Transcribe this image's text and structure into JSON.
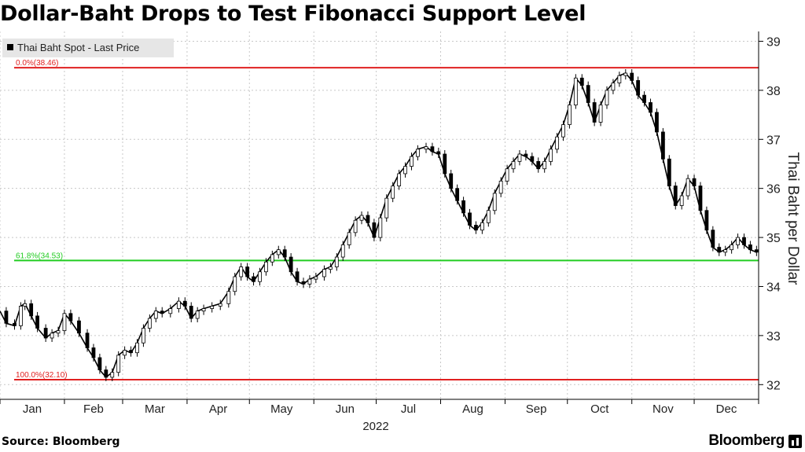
{
  "title": "Dollar-Baht Drops to Test Fibonacci Support Level",
  "source": "Source: Bloomberg",
  "brand": "Bloomberg",
  "chart_data": {
    "type": "line",
    "legend": "Thai Baht Spot - Last Price",
    "legend_position": "top-left",
    "ylabel": "Thai Baht per Dollar",
    "xlabel": "2022",
    "ylim": [
      31.7,
      39.2
    ],
    "yticks": [
      32,
      33,
      34,
      35,
      36,
      37,
      38,
      39
    ],
    "xlim": [
      0,
      365
    ],
    "months": [
      "Jan",
      "Feb",
      "Mar",
      "Apr",
      "May",
      "Jun",
      "Jul",
      "Aug",
      "Sep",
      "Oct",
      "Nov",
      "Dec"
    ],
    "month_days": [
      0,
      31,
      59,
      90,
      120,
      151,
      181,
      212,
      243,
      273,
      304,
      334,
      365
    ],
    "levels": [
      {
        "label": "0.0%(38.46)",
        "value": 38.46,
        "color": "#e02020"
      },
      {
        "label": "61.8%(34.53)",
        "value": 34.53,
        "color": "#22cc22"
      },
      {
        "label": "100.0%(32.10)",
        "value": 32.1,
        "color": "#e02020"
      }
    ],
    "series": [
      {
        "color": "#000000",
        "points": [
          [
            0,
            33.5
          ],
          [
            3,
            33.25
          ],
          [
            7,
            33.2
          ],
          [
            10,
            33.6
          ],
          [
            12,
            33.65
          ],
          [
            15,
            33.4
          ],
          [
            18,
            33.15
          ],
          [
            22,
            32.95
          ],
          [
            25,
            33.05
          ],
          [
            28,
            33.1
          ],
          [
            31,
            33.45
          ],
          [
            34,
            33.3
          ],
          [
            38,
            33.05
          ],
          [
            42,
            32.75
          ],
          [
            45,
            32.55
          ],
          [
            48,
            32.3
          ],
          [
            51,
            32.15
          ],
          [
            54,
            32.25
          ],
          [
            57,
            32.6
          ],
          [
            60,
            32.7
          ],
          [
            63,
            32.65
          ],
          [
            66,
            32.85
          ],
          [
            69,
            33.15
          ],
          [
            72,
            33.35
          ],
          [
            75,
            33.5
          ],
          [
            78,
            33.45
          ],
          [
            82,
            33.55
          ],
          [
            86,
            33.7
          ],
          [
            89,
            33.6
          ],
          [
            92,
            33.35
          ],
          [
            95,
            33.5
          ],
          [
            98,
            33.55
          ],
          [
            102,
            33.6
          ],
          [
            106,
            33.65
          ],
          [
            110,
            33.9
          ],
          [
            113,
            34.2
          ],
          [
            116,
            34.4
          ],
          [
            119,
            34.2
          ],
          [
            122,
            34.1
          ],
          [
            125,
            34.3
          ],
          [
            128,
            34.5
          ],
          [
            131,
            34.65
          ],
          [
            134,
            34.75
          ],
          [
            137,
            34.6
          ],
          [
            140,
            34.3
          ],
          [
            143,
            34.1
          ],
          [
            146,
            34.05
          ],
          [
            149,
            34.15
          ],
          [
            152,
            34.2
          ],
          [
            156,
            34.35
          ],
          [
            159,
            34.4
          ],
          [
            162,
            34.6
          ],
          [
            165,
            34.85
          ],
          [
            168,
            35.1
          ],
          [
            171,
            35.35
          ],
          [
            174,
            35.45
          ],
          [
            177,
            35.3
          ],
          [
            180,
            35.0
          ],
          [
            183,
            35.4
          ],
          [
            186,
            35.8
          ],
          [
            189,
            36.05
          ],
          [
            192,
            36.3
          ],
          [
            195,
            36.45
          ],
          [
            198,
            36.65
          ],
          [
            201,
            36.8
          ],
          [
            205,
            36.85
          ],
          [
            208,
            36.75
          ],
          [
            211,
            36.7
          ],
          [
            214,
            36.3
          ],
          [
            217,
            36.0
          ],
          [
            220,
            35.75
          ],
          [
            223,
            35.5
          ],
          [
            226,
            35.25
          ],
          [
            229,
            35.15
          ],
          [
            232,
            35.3
          ],
          [
            235,
            35.55
          ],
          [
            238,
            35.9
          ],
          [
            241,
            36.15
          ],
          [
            244,
            36.4
          ],
          [
            247,
            36.55
          ],
          [
            250,
            36.7
          ],
          [
            253,
            36.65
          ],
          [
            256,
            36.55
          ],
          [
            259,
            36.4
          ],
          [
            262,
            36.55
          ],
          [
            265,
            36.8
          ],
          [
            268,
            37.05
          ],
          [
            271,
            37.3
          ],
          [
            274,
            37.7
          ],
          [
            277,
            38.25
          ],
          [
            280,
            38.1
          ],
          [
            283,
            37.75
          ],
          [
            286,
            37.35
          ],
          [
            289,
            37.7
          ],
          [
            292,
            38.0
          ],
          [
            295,
            38.15
          ],
          [
            298,
            38.3
          ],
          [
            301,
            38.35
          ],
          [
            304,
            38.2
          ],
          [
            307,
            37.9
          ],
          [
            310,
            37.75
          ],
          [
            313,
            37.55
          ],
          [
            316,
            37.15
          ],
          [
            319,
            36.6
          ],
          [
            322,
            36.05
          ],
          [
            325,
            35.65
          ],
          [
            328,
            35.85
          ],
          [
            331,
            36.2
          ],
          [
            334,
            36.05
          ],
          [
            337,
            35.55
          ],
          [
            340,
            35.15
          ],
          [
            343,
            34.8
          ],
          [
            346,
            34.7
          ],
          [
            349,
            34.75
          ],
          [
            352,
            34.85
          ],
          [
            355,
            35.0
          ],
          [
            358,
            34.85
          ],
          [
            361,
            34.75
          ],
          [
            364,
            34.7
          ]
        ]
      }
    ]
  }
}
